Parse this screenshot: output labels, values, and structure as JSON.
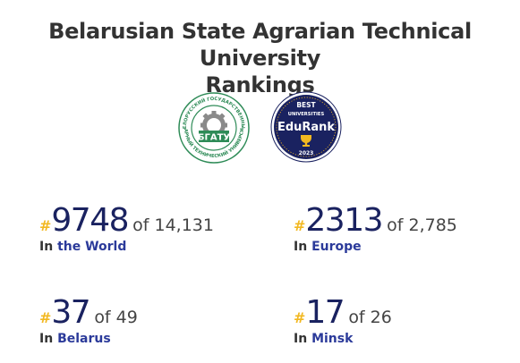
{
  "page": {
    "title_line1": "Belarusian State Agrarian Technical University",
    "title_line2": "Rankings"
  },
  "logos": {
    "university": {
      "icon": "university-seal-logo",
      "ring_text": "БЕЛОРУССКИЙ ГОСУДАРСТВЕННЫЙ АГРАРНЫЙ ТЕХНИЧЕСКИЙ УНИВЕРСИТЕТ",
      "center_text": "БГАТУ",
      "color": "#2e8b57"
    },
    "edurank": {
      "icon": "edurank-badge-logo",
      "top_text": "BEST",
      "ribbon_text": "UNIVERSITIES",
      "brand_text": "EduRank",
      "year": "2023",
      "color": "#1a2260"
    }
  },
  "rankings": [
    {
      "hash": "#",
      "rank": "9748",
      "of_text": "of 14,131",
      "in_label": "In",
      "region": "the World"
    },
    {
      "hash": "#",
      "rank": "2313",
      "of_text": "of 2,785",
      "in_label": "In",
      "region": "Europe"
    },
    {
      "hash": "#",
      "rank": "37",
      "of_text": "of 49",
      "in_label": "In",
      "region": "Belarus"
    },
    {
      "hash": "#",
      "rank": "17",
      "of_text": "of 26",
      "in_label": "In",
      "region": "Minsk"
    }
  ],
  "colors": {
    "accent_hash": "#f2b821",
    "rank_number": "#1a2260",
    "region_link": "#2b3a9a"
  }
}
